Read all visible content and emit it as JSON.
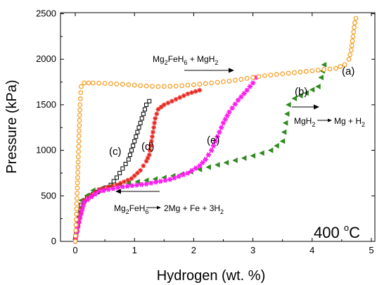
{
  "chart_data": {
    "type": "scatter",
    "title": "",
    "xlabel": "Hydrogen (wt. %)",
    "ylabel": "Pressure (kPa)",
    "xlim": [
      -0.3,
      5
    ],
    "ylim": [
      -50,
      2500
    ],
    "xticks": [
      "0",
      "1",
      "2",
      "3",
      "4",
      "5"
    ],
    "yticks": [
      "0",
      "500",
      "1000",
      "1500",
      "2000",
      "2500"
    ],
    "grid": false,
    "series": [
      {
        "name": "(a)",
        "marker": "open-circle",
        "color": "#f59a1c",
        "points": [
          [
            0,
            0
          ],
          [
            0.02,
            300
          ],
          [
            0.04,
            700
          ],
          [
            0.06,
            1100
          ],
          [
            0.08,
            1500
          ],
          [
            0.1,
            1700
          ],
          [
            0.15,
            1740
          ],
          [
            0.3,
            1740
          ],
          [
            0.5,
            1735
          ],
          [
            0.8,
            1725
          ],
          [
            1.1,
            1710
          ],
          [
            1.4,
            1700
          ],
          [
            1.7,
            1705
          ],
          [
            2.0,
            1720
          ],
          [
            2.3,
            1740
          ],
          [
            2.6,
            1760
          ],
          [
            2.9,
            1790
          ],
          [
            3.2,
            1820
          ],
          [
            3.5,
            1840
          ],
          [
            3.8,
            1860
          ],
          [
            4.1,
            1880
          ],
          [
            4.4,
            1900
          ],
          [
            4.55,
            1940
          ],
          [
            4.62,
            2000
          ],
          [
            4.66,
            2100
          ],
          [
            4.68,
            2200
          ],
          [
            4.7,
            2300
          ],
          [
            4.72,
            2400
          ],
          [
            4.74,
            2450
          ]
        ]
      },
      {
        "name": "(b)",
        "marker": "filled-left-triangle",
        "color": "#2e8b1e",
        "points": [
          [
            0,
            30
          ],
          [
            0.1,
            450
          ],
          [
            0.3,
            560
          ],
          [
            0.6,
            610
          ],
          [
            0.9,
            640
          ],
          [
            1.2,
            670
          ],
          [
            1.5,
            700
          ],
          [
            1.8,
            740
          ],
          [
            2.1,
            790
          ],
          [
            2.4,
            840
          ],
          [
            2.7,
            890
          ],
          [
            3.0,
            940
          ],
          [
            3.3,
            1000
          ],
          [
            3.5,
            1100
          ],
          [
            3.55,
            1300
          ],
          [
            3.6,
            1500
          ],
          [
            3.7,
            1570
          ],
          [
            3.9,
            1630
          ],
          [
            4.1,
            1700
          ],
          [
            4.15,
            1800
          ],
          [
            4.2,
            1940
          ]
        ]
      },
      {
        "name": "(c)",
        "marker": "open-square",
        "color": "#000000",
        "points": [
          [
            0,
            50
          ],
          [
            0.1,
            400
          ],
          [
            0.2,
            480
          ],
          [
            0.3,
            520
          ],
          [
            0.45,
            560
          ],
          [
            0.6,
            620
          ],
          [
            0.7,
            700
          ],
          [
            0.8,
            800
          ],
          [
            0.9,
            900
          ],
          [
            0.95,
            1000
          ],
          [
            1.0,
            1100
          ],
          [
            1.05,
            1200
          ],
          [
            1.1,
            1300
          ],
          [
            1.15,
            1400
          ],
          [
            1.2,
            1500
          ],
          [
            1.25,
            1540
          ]
        ]
      },
      {
        "name": "(d)",
        "marker": "star",
        "color": "#e8231c",
        "points": [
          [
            0,
            20
          ],
          [
            0.15,
            450
          ],
          [
            0.4,
            570
          ],
          [
            0.7,
            620
          ],
          [
            0.95,
            690
          ],
          [
            1.1,
            780
          ],
          [
            1.2,
            880
          ],
          [
            1.25,
            950
          ],
          [
            1.3,
            1150
          ],
          [
            1.35,
            1350
          ],
          [
            1.4,
            1450
          ],
          [
            1.5,
            1500
          ],
          [
            1.7,
            1560
          ],
          [
            1.9,
            1620
          ],
          [
            2.1,
            1660
          ]
        ]
      },
      {
        "name": "(e)",
        "marker": "filled-star",
        "color": "#ff1bf0",
        "points": [
          [
            0,
            0
          ],
          [
            0.05,
            200
          ],
          [
            0.15,
            430
          ],
          [
            0.4,
            550
          ],
          [
            0.8,
            600
          ],
          [
            1.2,
            630
          ],
          [
            1.6,
            680
          ],
          [
            1.9,
            750
          ],
          [
            2.1,
            830
          ],
          [
            2.2,
            900
          ],
          [
            2.3,
            1000
          ],
          [
            2.4,
            1150
          ],
          [
            2.5,
            1300
          ],
          [
            2.6,
            1420
          ],
          [
            2.75,
            1550
          ],
          [
            2.9,
            1660
          ],
          [
            3.0,
            1740
          ],
          [
            3.05,
            1800
          ]
        ]
      }
    ],
    "annotations": {
      "curve_labels": [
        "(a)",
        "(b)",
        "(c)",
        "(d)",
        "(e)"
      ],
      "top_formula": {
        "parts": [
          "Mg",
          "2",
          "FeH",
          "6",
          " + MgH",
          "2"
        ]
      },
      "right_formula": {
        "parts": [
          "MgH",
          "2",
          "Mg + H",
          "2"
        ]
      },
      "bottom_formula": {
        "parts": [
          "Mg",
          "2",
          "FeH",
          "6",
          "2Mg + Fe + 3H",
          "2"
        ]
      },
      "temperature": {
        "value": "400 ",
        "sup": "o",
        "unit": "C"
      }
    }
  }
}
